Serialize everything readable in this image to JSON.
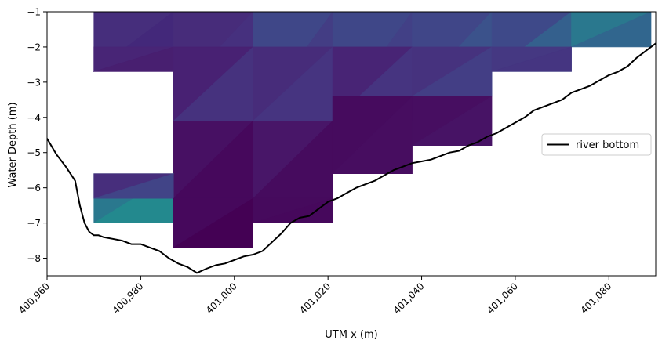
{
  "chart_data": {
    "type": "heatmap",
    "xlabel": "UTM x (m)",
    "ylabel": "Water Depth (m)",
    "xlim": [
      400960,
      401090
    ],
    "ylim": [
      -8.5,
      -1
    ],
    "x_ticks": [
      400960,
      400980,
      401000,
      401020,
      401040,
      401060,
      401080
    ],
    "x_tick_labels": [
      "400,960",
      "400,980",
      "401,000",
      "401,020",
      "401,040",
      "401,060",
      "401,080"
    ],
    "y_ticks": [
      -1,
      -2,
      -3,
      -4,
      -5,
      -6,
      -7,
      -8
    ],
    "y_tick_labels": [
      "−1",
      "−2",
      "−3",
      "−4",
      "−5",
      "−6",
      "−7",
      "−8"
    ],
    "grid": false,
    "legend": {
      "position": "center-right",
      "entries": [
        "river bottom"
      ]
    },
    "cells": [
      {
        "x0": 400970,
        "x1": 400987,
        "y0": -1.0,
        "y1": -2.7,
        "color": "#462e7c",
        "alt": "#43287a"
      },
      {
        "x0": 400987,
        "x1": 401004,
        "y0": -1.0,
        "y1": -3.4,
        "color": "#472c7a",
        "alt": "#46307e"
      },
      {
        "x0": 401004,
        "x1": 401021,
        "y0": -1.0,
        "y1": -4.1,
        "color": "#3f4788",
        "alt": "#433d84"
      },
      {
        "x0": 401021,
        "x1": 401038,
        "y0": -1.0,
        "y1": -4.1,
        "color": "#3f4788",
        "alt": "#424086"
      },
      {
        "x0": 401038,
        "x1": 401055,
        "y0": -1.0,
        "y1": -3.4,
        "color": "#404688",
        "alt": "#3b528b"
      },
      {
        "x0": 401055,
        "x1": 401072,
        "y0": -1.0,
        "y1": -2.7,
        "color": "#3e4989",
        "alt": "#34608d"
      },
      {
        "x0": 401072,
        "x1": 401089,
        "y0": -1.0,
        "y1": -2.0,
        "color": "#2a788e",
        "alt": "#31668e"
      },
      {
        "x0": 400970,
        "x1": 400987,
        "y0": -2.0,
        "y1": -2.7,
        "color": "#482576",
        "alt": "#481f70"
      },
      {
        "x0": 400987,
        "x1": 401004,
        "y0": -2.0,
        "y1": -4.1,
        "color": "#482173",
        "alt": "#46327e"
      },
      {
        "x0": 401004,
        "x1": 401021,
        "y0": -2.0,
        "y1": -4.1,
        "color": "#472c7a",
        "alt": "#463480"
      },
      {
        "x0": 401021,
        "x1": 401038,
        "y0": -2.0,
        "y1": -4.1,
        "color": "#482475",
        "alt": "#463480"
      },
      {
        "x0": 401038,
        "x1": 401055,
        "y0": -2.0,
        "y1": -3.4,
        "color": "#46327e",
        "alt": "#433e85"
      },
      {
        "x0": 401055,
        "x1": 401072,
        "y0": -2.0,
        "y1": -2.7,
        "color": "#453882",
        "alt": "#453581"
      },
      {
        "x0": 400987,
        "x1": 401004,
        "y0": -4.1,
        "y1": -6.3,
        "color": "#471063",
        "alt": "#46085c"
      },
      {
        "x0": 401004,
        "x1": 401021,
        "y0": -4.1,
        "y1": -6.3,
        "color": "#481668",
        "alt": "#460b5e"
      },
      {
        "x0": 401021,
        "x1": 401038,
        "y0": -3.4,
        "y1": -5.6,
        "color": "#460b5e",
        "alt": "#470d60"
      },
      {
        "x0": 401038,
        "x1": 401055,
        "y0": -3.4,
        "y1": -4.8,
        "color": "#470e61",
        "alt": "#471365"
      },
      {
        "x0": 400970,
        "x1": 400987,
        "y0": -5.6,
        "y1": -7.0,
        "color": "#2a788e",
        "alt": "#23898e"
      },
      {
        "x0": 400970,
        "x1": 400987,
        "y0": -5.6,
        "y1": -6.3,
        "color": "#472e7c",
        "alt": "#414487"
      },
      {
        "x0": 400987,
        "x1": 401004,
        "y0": -6.3,
        "y1": -7.7,
        "color": "#46085c",
        "alt": "#440154"
      },
      {
        "x0": 401004,
        "x1": 401021,
        "y0": -6.3,
        "y1": -7.0,
        "color": "#460a5d",
        "alt": "#46085c"
      }
    ],
    "series": [
      {
        "name": "river bottom",
        "type": "line",
        "color": "#000000",
        "x": [
          400960,
          400962,
          400964,
          400966,
          400967,
          400968,
          400969,
          400970,
          400971,
          400972,
          400974,
          400976,
          400978,
          400980,
          400982,
          400984,
          400986,
          400988,
          400990,
          400992,
          400994,
          400996,
          400998,
          401000,
          401002,
          401004,
          401006,
          401008,
          401010,
          401012,
          401014,
          401016,
          401018,
          401020,
          401022,
          401024,
          401026,
          401028,
          401030,
          401032,
          401034,
          401036,
          401038,
          401040,
          401042,
          401044,
          401046,
          401048,
          401050,
          401052,
          401054,
          401056,
          401058,
          401060,
          401062,
          401064,
          401066,
          401068,
          401070,
          401072,
          401074,
          401076,
          401078,
          401080,
          401082,
          401084,
          401086,
          401088,
          401090
        ],
        "y": [
          -4.6,
          -5.05,
          -5.4,
          -5.8,
          -6.5,
          -7.0,
          -7.25,
          -7.35,
          -7.35,
          -7.4,
          -7.45,
          -7.5,
          -7.6,
          -7.6,
          -7.7,
          -7.8,
          -8.0,
          -8.15,
          -8.25,
          -8.42,
          -8.3,
          -8.2,
          -8.15,
          -8.05,
          -7.95,
          -7.9,
          -7.8,
          -7.55,
          -7.3,
          -7.0,
          -6.85,
          -6.8,
          -6.6,
          -6.4,
          -6.3,
          -6.15,
          -6.0,
          -5.9,
          -5.8,
          -5.65,
          -5.5,
          -5.4,
          -5.3,
          -5.25,
          -5.2,
          -5.1,
          -5.0,
          -4.95,
          -4.8,
          -4.7,
          -4.55,
          -4.45,
          -4.3,
          -4.15,
          -4.0,
          -3.8,
          -3.7,
          -3.6,
          -3.5,
          -3.3,
          -3.2,
          -3.1,
          -2.95,
          -2.8,
          -2.7,
          -2.55,
          -2.3,
          -2.1,
          -1.9
        ]
      }
    ]
  }
}
